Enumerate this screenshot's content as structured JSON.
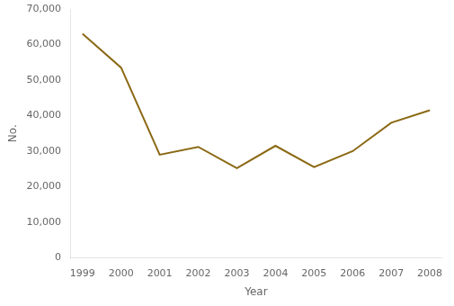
{
  "chart_data": {
    "type": "line",
    "x": [
      1999,
      2000,
      2001,
      2002,
      2003,
      2004,
      2005,
      2006,
      2007,
      2008
    ],
    "values": [
      63045,
      53500,
      29000,
      31200,
      25209,
      31500,
      25500,
      30000,
      38000,
      41500
    ],
    "color": "#8B6914",
    "x_label": "Year",
    "y_label": "No.",
    "xlim": [
      1998.7,
      2008.3
    ],
    "xticks": [
      1999,
      2000,
      2001,
      2002,
      2003,
      2004,
      2005,
      2006,
      2007,
      2008
    ],
    "ylim": [
      0,
      70000
    ],
    "yticks": [
      0,
      {
        "value": 10000,
        "label": "10,000"
      },
      {
        "value": 20000,
        "label": "20,000"
      },
      {
        "value": 30000,
        "label": "30,000"
      },
      {
        "value": 40000,
        "label": "40,000"
      },
      {
        "value": 50000,
        "label": "50,000"
      },
      {
        "value": 60000,
        "label": "60,000"
      },
      {
        "value": 70000,
        "label": "70,000"
      }
    ],
    "grid": false
  }
}
